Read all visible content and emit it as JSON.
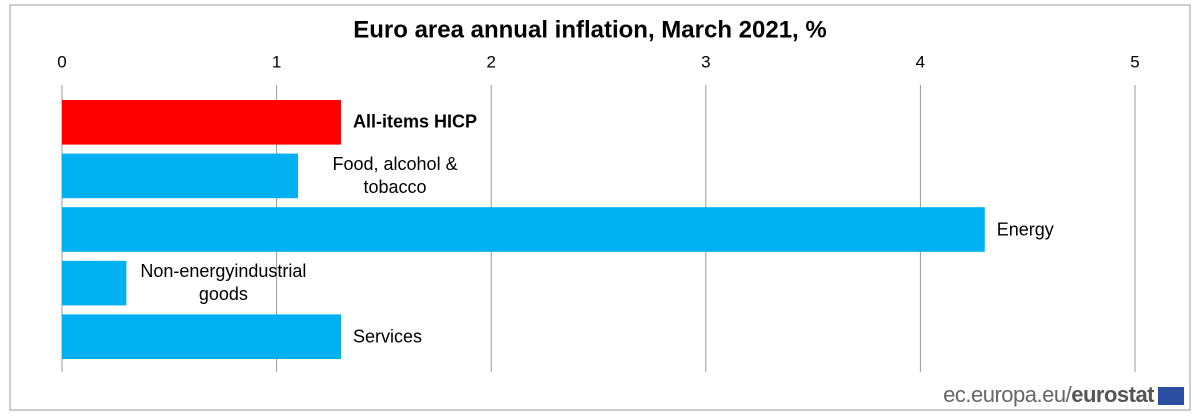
{
  "chart_data": {
    "type": "bar",
    "orientation": "horizontal",
    "title": "Euro area annual inflation, March 2021, %",
    "categories": [
      "All-items HICP",
      "Food, alcohol & tobacco",
      "Energy",
      "Non-energyindustrial goods",
      "Services"
    ],
    "values": [
      1.3,
      1.1,
      4.3,
      0.3,
      1.3
    ],
    "colors": [
      "#ff0000",
      "#00b0f0",
      "#00b0f0",
      "#00b0f0",
      "#00b0f0"
    ],
    "xlim": [
      0,
      5
    ],
    "xticks": [
      0,
      1,
      2,
      3,
      4,
      5
    ],
    "grid": true,
    "source": {
      "site": "ec.europa.eu/",
      "brand": "eurostat"
    }
  }
}
